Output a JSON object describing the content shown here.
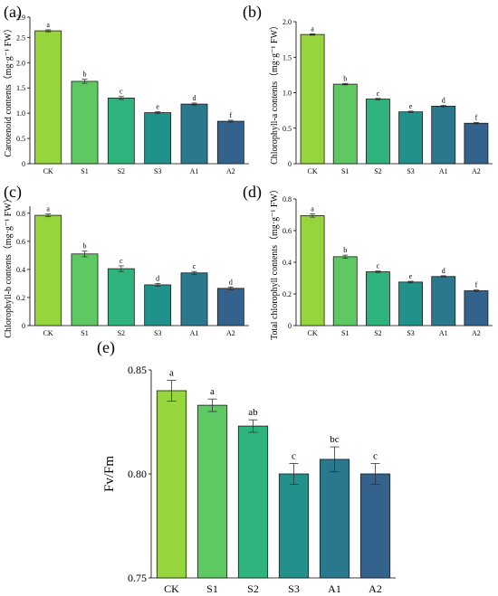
{
  "chart_data": [
    {
      "panel": "(a)",
      "type": "bar",
      "ylabel": "Carotenoid contents（mg·g⁻¹ FW）",
      "categories": [
        "CK",
        "S1",
        "S2",
        "S3",
        "A1",
        "A2"
      ],
      "values": [
        2.63,
        1.63,
        1.3,
        1.01,
        1.18,
        0.84
      ],
      "errors": [
        0.02,
        0.04,
        0.03,
        0.02,
        0.02,
        0.02
      ],
      "letters": [
        "a",
        "b",
        "c",
        "e",
        "d",
        "f"
      ],
      "ylim": [
        0,
        2.9
      ],
      "yticks": [
        0,
        0.5,
        1.0,
        1.5,
        2.0,
        2.5,
        2.9
      ],
      "ytick_labels": [
        "0",
        "0.5",
        "1.0",
        "1.5",
        "2.0",
        "2.5",
        "2.9"
      ]
    },
    {
      "panel": "(b)",
      "type": "bar",
      "ylabel": "Chlorophyll-a contents（mg·g⁻¹ FW）",
      "categories": [
        "CK",
        "S1",
        "S2",
        "S3",
        "A1",
        "A2"
      ],
      "values": [
        1.82,
        1.12,
        0.91,
        0.73,
        0.81,
        0.57
      ],
      "errors": [
        0.01,
        0.01,
        0.01,
        0.01,
        0.01,
        0.01
      ],
      "letters": [
        "a",
        "b",
        "c",
        "e",
        "d",
        "f"
      ],
      "ylim": [
        0,
        2.0
      ],
      "yticks": [
        0,
        0.5,
        1.0,
        1.5,
        2.0
      ],
      "ytick_labels": [
        "0",
        "0.5",
        "1.0",
        "1.5",
        "2.0"
      ]
    },
    {
      "panel": "(c)",
      "type": "bar",
      "ylabel": "Chlorophyll-b contents（mg·g⁻¹ FW）",
      "categories": [
        "CK",
        "S1",
        "S2",
        "S3",
        "A1",
        "A2"
      ],
      "values": [
        0.785,
        0.51,
        0.405,
        0.29,
        0.375,
        0.265
      ],
      "errors": [
        0.01,
        0.02,
        0.02,
        0.01,
        0.01,
        0.01
      ],
      "letters": [
        "a",
        "b",
        "c",
        "d",
        "c",
        "d"
      ],
      "ylim": [
        0,
        0.85
      ],
      "yticks": [
        0,
        0.2,
        0.4,
        0.6,
        0.8
      ],
      "ytick_labels": [
        "0",
        "0.2",
        "0.4",
        "0.6",
        "0.8"
      ]
    },
    {
      "panel": "(d)",
      "type": "bar",
      "ylabel": "Total chlorophyll contents（mg·g⁻¹ FW）",
      "categories": [
        "CK",
        "S1",
        "S2",
        "S3",
        "A1",
        "A2"
      ],
      "values": [
        0.695,
        0.435,
        0.34,
        0.275,
        0.31,
        0.22
      ],
      "errors": [
        0.01,
        0.01,
        0.005,
        0.005,
        0.005,
        0.005
      ],
      "letters": [
        "a",
        "b",
        "c",
        "e",
        "d",
        "f"
      ],
      "ylim": [
        0,
        0.8
      ],
      "yticks": [
        0,
        0.2,
        0.4,
        0.6,
        0.8
      ],
      "ytick_labels": [
        "0",
        "0.2",
        "0.4",
        "0.6",
        "0.8"
      ]
    },
    {
      "panel": "(e)",
      "type": "bar",
      "ylabel": "Fv/Fm",
      "categories": [
        "CK",
        "S1",
        "S2",
        "S3",
        "A1",
        "A2"
      ],
      "values": [
        0.84,
        0.833,
        0.823,
        0.8,
        0.807,
        0.8
      ],
      "errors": [
        0.005,
        0.003,
        0.003,
        0.005,
        0.006,
        0.005
      ],
      "letters": [
        "a",
        "a",
        "ab",
        "c",
        "bc",
        "c"
      ],
      "ylim": [
        0.75,
        0.85
      ],
      "yticks": [
        0.75,
        0.8,
        0.85
      ],
      "ytick_labels": [
        "0.75",
        "0.80",
        "0.85"
      ]
    }
  ],
  "bar_colors": [
    "#97d53c",
    "#5ec962",
    "#2eb37c",
    "#21918c",
    "#2a788e",
    "#33638d"
  ]
}
